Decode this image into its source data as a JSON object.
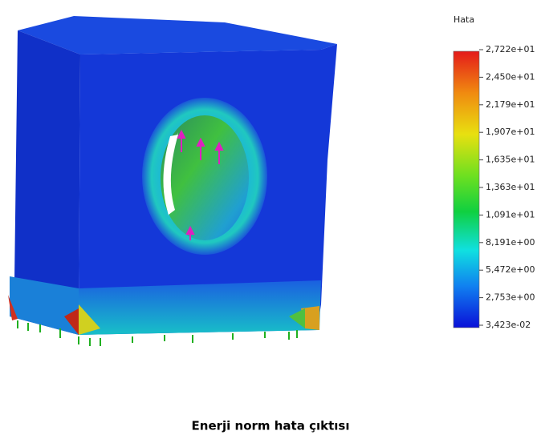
{
  "legend": {
    "title": "Hata",
    "labels": [
      "2,722e+01",
      "2,450e+01",
      "2,179e+01",
      "1,907e+01",
      "1,635e+01",
      "1,363e+01",
      "1,091e+01",
      "8,191e+00",
      "5,472e+00",
      "2,753e+00",
      "3,423e-02"
    ]
  },
  "caption": "Enerji norm hata çıktısı"
}
